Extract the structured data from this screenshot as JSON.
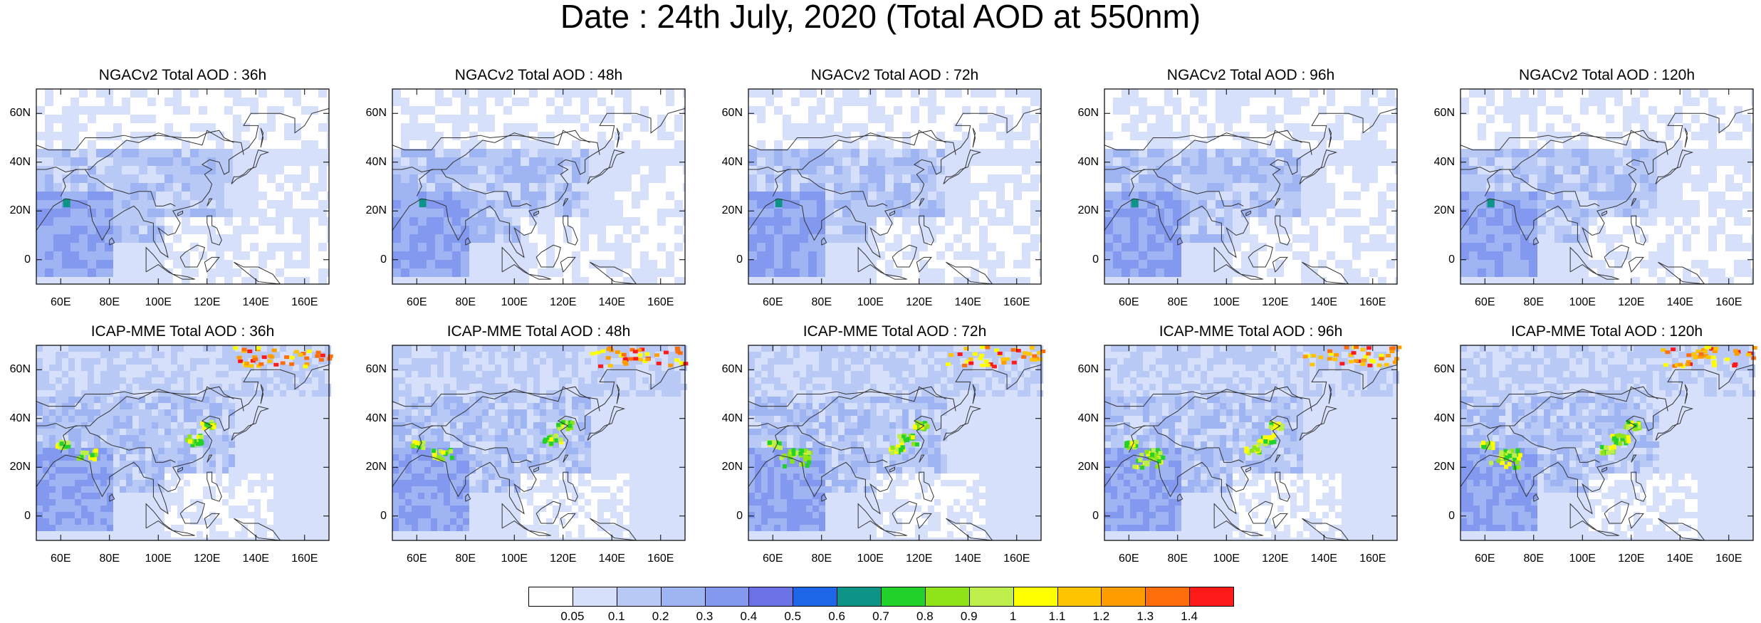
{
  "title": "Date : 24th July, 2020 (Total AOD at 550nm)",
  "panels": [
    {
      "title": "NGACv2 Total AOD : 36h",
      "model": "NGACv2",
      "lead": 36
    },
    {
      "title": "NGACv2 Total AOD : 48h",
      "model": "NGACv2",
      "lead": 48
    },
    {
      "title": "NGACv2 Total AOD : 72h",
      "model": "NGACv2",
      "lead": 72
    },
    {
      "title": "NGACv2 Total AOD : 96h",
      "model": "NGACv2",
      "lead": 96
    },
    {
      "title": "NGACv2 Total AOD : 120h",
      "model": "NGACv2",
      "lead": 120
    },
    {
      "title": "ICAP-MME Total AOD : 36h",
      "model": "ICAP-MME",
      "lead": 36
    },
    {
      "title": "ICAP-MME Total AOD : 48h",
      "model": "ICAP-MME",
      "lead": 48
    },
    {
      "title": "ICAP-MME Total AOD : 72h",
      "model": "ICAP-MME",
      "lead": 72
    },
    {
      "title": "ICAP-MME Total AOD : 96h",
      "model": "ICAP-MME",
      "lead": 96
    },
    {
      "title": "ICAP-MME Total AOD : 120h",
      "model": "ICAP-MME",
      "lead": 120
    }
  ],
  "map": {
    "lon_range": [
      50,
      170
    ],
    "lat_range": [
      -10,
      70
    ],
    "lat_ticks": [
      {
        "v": 60,
        "label": "60N"
      },
      {
        "v": 40,
        "label": "40N"
      },
      {
        "v": 20,
        "label": "20N"
      },
      {
        "v": 0,
        "label": "0"
      }
    ],
    "lon_ticks": [
      {
        "v": 60,
        "label": "60E"
      },
      {
        "v": 80,
        "label": "80E"
      },
      {
        "v": 100,
        "label": "100E"
      },
      {
        "v": 120,
        "label": "120E"
      },
      {
        "v": 140,
        "label": "140E"
      },
      {
        "v": 160,
        "label": "160E"
      }
    ]
  },
  "colorbar": {
    "levels": [
      "0.05",
      "0.1",
      "0.2",
      "0.3",
      "0.4",
      "0.5",
      "0.6",
      "0.7",
      "0.8",
      "0.9",
      "1",
      "1.1",
      "1.2",
      "1.3",
      "1.4"
    ],
    "colors": [
      "#ffffff",
      "#d6e0fb",
      "#b9c9f6",
      "#9fb4f3",
      "#8399ef",
      "#6a72e6",
      "#1d66e8",
      "#0e9486",
      "#22d22a",
      "#8ee418",
      "#bdee4a",
      "#ffff00",
      "#ffc400",
      "#ff9c00",
      "#ff6e0a",
      "#ff1a1a"
    ]
  },
  "colors": {
    "land_line": "#333333",
    "frame": "#000000"
  }
}
